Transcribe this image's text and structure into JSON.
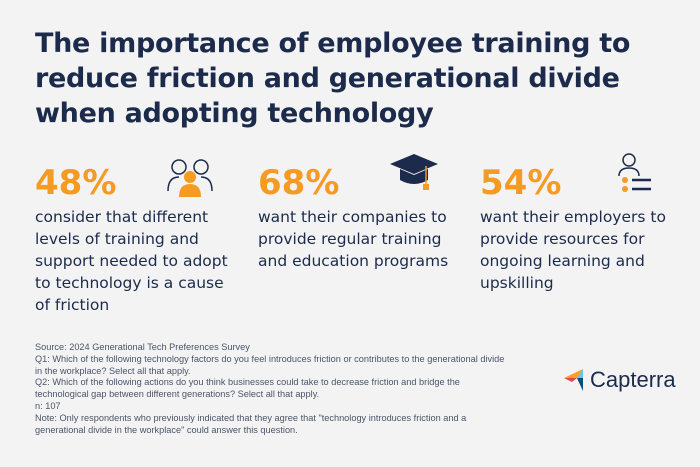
{
  "header": {
    "title": [
      "The importance of employee training to",
      "reduce friction and generational divide",
      "when adopting technology"
    ]
  },
  "stats": [
    {
      "value": "48%",
      "text": [
        "consider that different",
        "levels of training and",
        "support needed to adopt",
        "to technology is a cause",
        "of friction"
      ]
    },
    {
      "value": "68%",
      "text": [
        "want their companies to",
        "provide regular training",
        "and education programs"
      ]
    },
    {
      "value": "54%",
      "text": [
        "want their employers to",
        "provide resources for",
        "ongoing learning and",
        "upskilling"
      ]
    }
  ],
  "footnote": [
    "Source: 2024 Generational Tech Preferences Survey",
    "Q1: Which of the following technology factors do you feel introduces friction or contributes to the generational divide",
    "in the workplace? Select all that apply.",
    "Q2: Which of the following actions do you think businesses could take to decrease friction and bridge the",
    "technological gap between different generations? Select all that apply.",
    "n: 107",
    "Note: Only respondents who previously indicated that they agree that \"technology introduces friction and a",
    "generational divide in the workplace\" could answer this question."
  ],
  "logo": "Capterra"
}
